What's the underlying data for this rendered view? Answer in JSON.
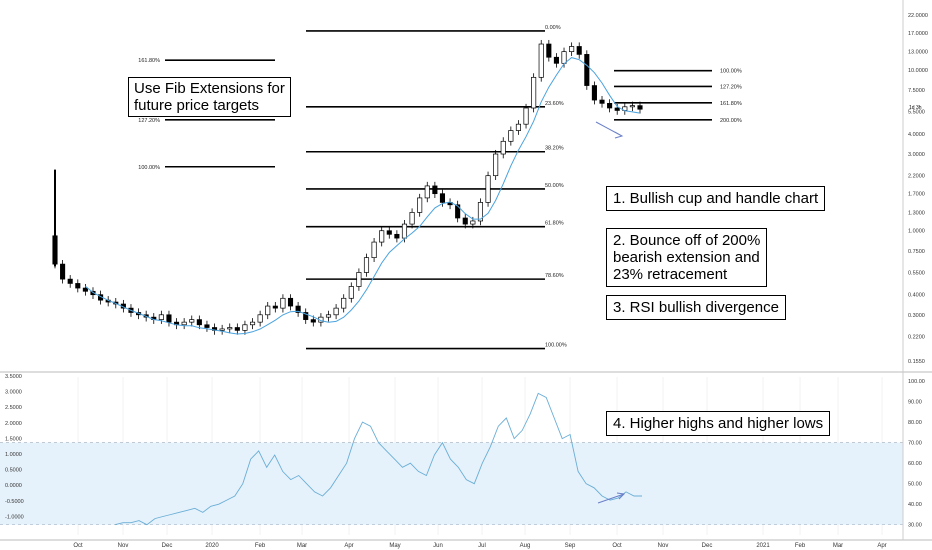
{
  "notes": {
    "fib_ext": "Use Fib Extensions for\nfuture price targets",
    "n1": "1.  Bullish cup and handle chart",
    "n2": "2. Bounce off of 200%\nbearish extension and\n23% retracement",
    "n3": "3. RSI bullish divergence",
    "n4": "4. Higher highs and higher lows"
  },
  "colors": {
    "candle": "#000000",
    "ma": "#4aa3df",
    "rsi": "#6aaed6",
    "rsi_band": "#e6f2fb",
    "grid": "#e6e6e6",
    "arrow": "#6a7fc9"
  },
  "chart_data": [
    {
      "type": "candlestick",
      "scale": "log",
      "x_ticks": [
        "Oct",
        "Nov",
        "Dec",
        "2020",
        "Feb",
        "Mar",
        "Apr",
        "May",
        "Jun",
        "Jul",
        "Aug",
        "Sep",
        "Oct",
        "Nov",
        "Dec",
        "2021",
        "Feb",
        "Mar",
        "Apr"
      ],
      "y_ticks": [
        "22.0000",
        "17.0000",
        "13.0000",
        "10.0000",
        "7.5000",
        "5.5000",
        "4.0000",
        "3.0000",
        "2.2000",
        "1.7000",
        "1.3000",
        "1.0000",
        "0.7500",
        "0.5500",
        "0.4000",
        "0.3000",
        "0.2200",
        "0.1550"
      ],
      "last_price_label": "1d 3h",
      "retracement_levels": [
        {
          "label": "0.00%",
          "price": 17.5
        },
        {
          "label": "23.60%",
          "price": 5.9
        },
        {
          "label": "38.20%",
          "price": 3.1
        },
        {
          "label": "50.00%",
          "price": 1.82
        },
        {
          "label": "61.80%",
          "price": 1.06
        },
        {
          "label": "78.60%",
          "price": 0.5
        },
        {
          "label": "100.00%",
          "price": 0.185
        }
      ],
      "extension_levels_left": [
        {
          "label": "161.80%",
          "price": 11.5
        },
        {
          "label": "127.20%",
          "price": 4.9
        },
        {
          "label": "100.00%",
          "price": 2.5
        }
      ],
      "extension_levels_right": [
        {
          "label": "100.00%",
          "price": 9.9
        },
        {
          "label": "127.20%",
          "price": 7.9
        },
        {
          "label": "161.80%",
          "price": 6.25
        },
        {
          "label": "200.00%",
          "price": 4.9
        }
      ],
      "series": [
        {
          "name": "Price",
          "values_close": [
            0.62,
            0.5,
            0.47,
            0.44,
            0.42,
            0.4,
            0.37,
            0.36,
            0.35,
            0.33,
            0.31,
            0.3,
            0.29,
            0.28,
            0.3,
            0.27,
            0.26,
            0.27,
            0.28,
            0.26,
            0.25,
            0.24,
            0.245,
            0.25,
            0.24,
            0.26,
            0.27,
            0.3,
            0.34,
            0.33,
            0.38,
            0.34,
            0.31,
            0.28,
            0.27,
            0.29,
            0.3,
            0.33,
            0.38,
            0.45,
            0.55,
            0.68,
            0.85,
            1.0,
            0.95,
            0.9,
            1.1,
            1.3,
            1.6,
            1.9,
            1.7,
            1.5,
            1.45,
            1.2,
            1.1,
            1.15,
            1.5,
            2.2,
            3.0,
            3.6,
            4.2,
            4.6,
            5.8,
            9.0,
            14.5,
            12.0,
            11.0,
            13.0,
            14.0,
            12.5,
            8.0,
            6.5,
            6.2,
            5.8,
            5.6,
            5.9,
            6.0,
            5.7
          ]
        }
      ]
    },
    {
      "type": "line",
      "title": "",
      "y_ticks": [
        "100.00",
        "90.00",
        "80.00",
        "70.00",
        "60.00",
        "50.00",
        "40.00",
        "30.00"
      ],
      "left_ticks": [
        "3.5000",
        "3.0000",
        "2.5000",
        "2.0000",
        "1.5000",
        "1.0000",
        "0.5000",
        "0.0000",
        "-0.5000",
        "-1.0000"
      ],
      "band": [
        30,
        70
      ],
      "series": [
        {
          "name": "",
          "values": [
            30,
            31,
            31,
            32,
            30,
            33,
            34,
            35,
            36,
            37,
            38,
            36,
            39,
            40,
            42,
            44,
            50,
            62,
            66,
            58,
            64,
            56,
            52,
            54,
            50,
            46,
            44,
            48,
            54,
            60,
            72,
            80,
            78,
            70,
            66,
            62,
            58,
            60,
            56,
            54,
            64,
            70,
            62,
            58,
            52,
            50,
            60,
            68,
            78,
            82,
            72,
            76,
            84,
            94,
            92,
            82,
            72,
            74,
            56,
            50,
            48,
            44,
            42,
            43,
            46,
            44,
            44
          ]
        }
      ]
    }
  ]
}
